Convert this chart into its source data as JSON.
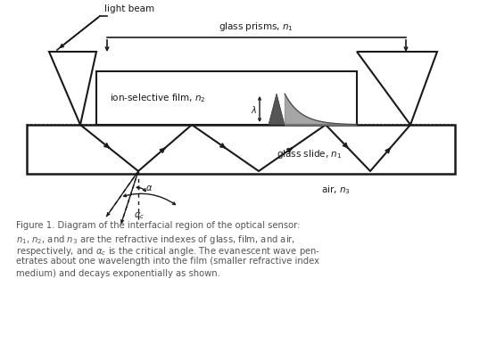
{
  "bg_color": "#ffffff",
  "line_color": "#1a1a1a",
  "fig_width": 5.47,
  "fig_height": 3.86,
  "caption_color": "#555555",
  "label_light_beam": "light beam",
  "label_glass_prisms": "glass prisms, $n_1$",
  "label_film": "ion-selective film, $n_2$",
  "label_glass_slide": "glass slide, $n_1$",
  "label_air": "air, $n_3$",
  "label_lambda": "$\\lambda$",
  "label_alpha": "$\\alpha$",
  "label_alpha_c": "$\\alpha_c$",
  "caption_line1": "Figure 1. Diagram of the interfacial region of the optical sensor:",
  "caption_line2": "$n_1$, $n_2$, and $n_3$ are the refractive indexes of glass, film, and air,",
  "caption_line3": "respectively, and $\\alpha_c$ is the critical angle. The evanescent wave pen-",
  "caption_line4": "etrates about one wavelength into the film (smaller refractive index",
  "caption_line5": "medium) and decays exponentially as shown."
}
